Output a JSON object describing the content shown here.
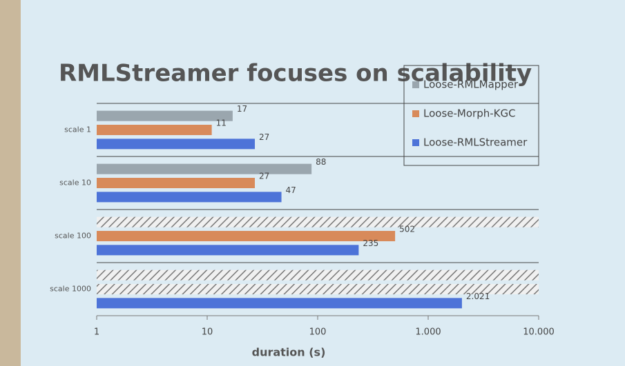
{
  "chart_data": {
    "type": "bar",
    "orientation": "horizontal",
    "title": "RMLStreamer focuses on scalability",
    "x_label": "duration (s)",
    "categories": [
      "scale 1",
      "scale 10",
      "scale 100",
      "scale 1000"
    ],
    "series": [
      {
        "name": "Loose-RMLMapper",
        "color": "#9aa6ae",
        "values": [
          17,
          88,
          null,
          null
        ]
      },
      {
        "name": "Loose-Morph-KGC",
        "color": "#d88a5a",
        "values": [
          11,
          27,
          502,
          null
        ]
      },
      {
        "name": "Loose-RMLStreamer",
        "color": "#4d73d8",
        "values": [
          27,
          47,
          235,
          2021
        ],
        "value_labels": [
          "27",
          "47",
          "235",
          "2.021"
        ]
      }
    ],
    "xlim": [
      1,
      10000
    ],
    "xticks": [
      1,
      10,
      100,
      {
        "value": 1000,
        "label": "1.000"
      },
      {
        "value": 10000,
        "label": "10.000"
      }
    ],
    "log_x": true,
    "missing_hatched": true,
    "legend": "top-right"
  }
}
